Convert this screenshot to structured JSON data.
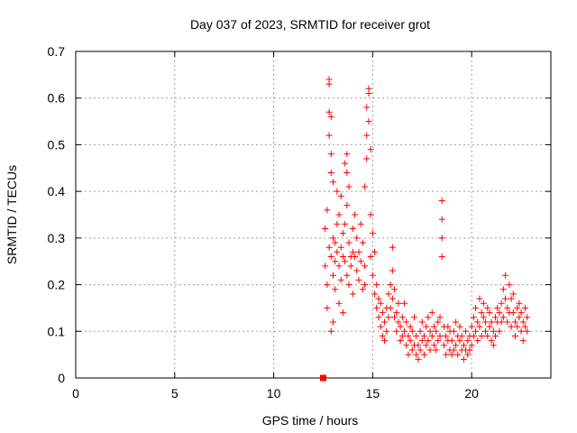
{
  "chart_data": {
    "type": "scatter",
    "title": "Day 037 of 2023, SRMTID for receiver grot",
    "xlabel": "GPS time / hours",
    "ylabel": "SRMTID / TECUs",
    "xlim": [
      0,
      24
    ],
    "ylim": [
      0,
      0.7
    ],
    "xticks": [
      0,
      5,
      10,
      15,
      20
    ],
    "yticks": [
      0,
      0.1,
      0.2,
      0.3,
      0.4,
      0.5,
      0.6,
      0.7
    ],
    "xtick_labels": [
      "0",
      "5",
      "10",
      "15",
      "20"
    ],
    "ytick_labels": [
      "0",
      "0.1",
      "0.2",
      "0.3",
      "0.4",
      "0.5",
      "0.6",
      "0.7"
    ],
    "grid": true,
    "marker": "plus",
    "color": "#ff0000",
    "special_point": {
      "x": 12.5,
      "y": 0.0,
      "marker": "square"
    },
    "series": [
      {
        "name": "SRMTID",
        "points": [
          [
            12.6,
            0.24
          ],
          [
            12.6,
            0.32
          ],
          [
            12.7,
            0.36
          ],
          [
            12.7,
            0.15
          ],
          [
            12.7,
            0.2
          ],
          [
            12.8,
            0.64
          ],
          [
            12.8,
            0.63
          ],
          [
            12.8,
            0.57
          ],
          [
            12.8,
            0.52
          ],
          [
            12.8,
            0.28
          ],
          [
            12.9,
            0.56
          ],
          [
            12.9,
            0.48
          ],
          [
            12.9,
            0.44
          ],
          [
            12.9,
            0.26
          ],
          [
            12.9,
            0.1
          ],
          [
            13.0,
            0.42
          ],
          [
            13.0,
            0.3
          ],
          [
            13.0,
            0.22
          ],
          [
            13.0,
            0.12
          ],
          [
            13.1,
            0.29
          ],
          [
            13.1,
            0.25
          ],
          [
            13.1,
            0.19
          ],
          [
            13.2,
            0.4
          ],
          [
            13.2,
            0.33
          ],
          [
            13.2,
            0.27
          ],
          [
            13.3,
            0.35
          ],
          [
            13.3,
            0.24
          ],
          [
            13.3,
            0.16
          ],
          [
            13.4,
            0.39
          ],
          [
            13.4,
            0.28
          ],
          [
            13.4,
            0.21
          ],
          [
            13.5,
            0.31
          ],
          [
            13.5,
            0.26
          ],
          [
            13.5,
            0.14
          ],
          [
            13.6,
            0.46
          ],
          [
            13.6,
            0.33
          ],
          [
            13.6,
            0.25
          ],
          [
            13.7,
            0.48
          ],
          [
            13.7,
            0.44
          ],
          [
            13.7,
            0.37
          ],
          [
            13.7,
            0.22
          ],
          [
            13.8,
            0.41
          ],
          [
            13.8,
            0.29
          ],
          [
            13.8,
            0.2
          ],
          [
            13.9,
            0.26
          ],
          [
            13.9,
            0.24
          ],
          [
            14.0,
            0.32
          ],
          [
            14.0,
            0.27
          ],
          [
            14.0,
            0.18
          ],
          [
            14.1,
            0.35
          ],
          [
            14.1,
            0.26
          ],
          [
            14.2,
            0.3
          ],
          [
            14.2,
            0.23
          ],
          [
            14.3,
            0.27
          ],
          [
            14.3,
            0.21
          ],
          [
            14.4,
            0.33
          ],
          [
            14.4,
            0.25
          ],
          [
            14.5,
            0.29
          ],
          [
            14.5,
            0.19
          ],
          [
            14.6,
            0.24
          ],
          [
            14.6,
            0.2
          ],
          [
            14.6,
            0.41
          ],
          [
            14.7,
            0.52
          ],
          [
            14.7,
            0.58
          ],
          [
            14.7,
            0.47
          ],
          [
            14.8,
            0.61
          ],
          [
            14.8,
            0.62
          ],
          [
            14.8,
            0.55
          ],
          [
            14.9,
            0.49
          ],
          [
            14.9,
            0.35
          ],
          [
            14.9,
            0.26
          ],
          [
            15.0,
            0.31
          ],
          [
            15.0,
            0.22
          ],
          [
            15.1,
            0.27
          ],
          [
            15.1,
            0.18
          ],
          [
            15.2,
            0.15
          ],
          [
            15.2,
            0.2
          ],
          [
            15.3,
            0.13
          ],
          [
            15.3,
            0.17
          ],
          [
            15.4,
            0.16
          ],
          [
            15.4,
            0.11
          ],
          [
            15.5,
            0.09
          ],
          [
            15.5,
            0.14
          ],
          [
            15.6,
            0.08
          ],
          [
            15.6,
            0.12
          ],
          [
            15.7,
            0.15
          ],
          [
            15.7,
            0.1
          ],
          [
            15.8,
            0.18
          ],
          [
            15.8,
            0.13
          ],
          [
            15.9,
            0.2
          ],
          [
            15.9,
            0.15
          ],
          [
            16.0,
            0.23
          ],
          [
            16.0,
            0.28
          ],
          [
            16.0,
            0.17
          ],
          [
            16.1,
            0.19
          ],
          [
            16.1,
            0.13
          ],
          [
            16.2,
            0.14
          ],
          [
            16.2,
            0.1
          ],
          [
            16.3,
            0.16
          ],
          [
            16.3,
            0.12
          ],
          [
            16.4,
            0.11
          ],
          [
            16.4,
            0.08
          ],
          [
            16.5,
            0.13
          ],
          [
            16.5,
            0.09
          ],
          [
            16.6,
            0.16
          ],
          [
            16.6,
            0.1
          ],
          [
            16.7,
            0.12
          ],
          [
            16.7,
            0.07
          ],
          [
            16.8,
            0.09
          ],
          [
            16.8,
            0.05
          ],
          [
            16.9,
            0.08
          ],
          [
            16.9,
            0.11
          ],
          [
            17.0,
            0.06
          ],
          [
            17.0,
            0.1
          ],
          [
            17.1,
            0.13
          ],
          [
            17.1,
            0.07
          ],
          [
            17.2,
            0.09
          ],
          [
            17.2,
            0.05
          ],
          [
            17.3,
            0.07
          ],
          [
            17.3,
            0.04
          ],
          [
            17.4,
            0.1
          ],
          [
            17.4,
            0.06
          ],
          [
            17.5,
            0.12
          ],
          [
            17.5,
            0.08
          ],
          [
            17.6,
            0.09
          ],
          [
            17.6,
            0.05
          ],
          [
            17.7,
            0.11
          ],
          [
            17.7,
            0.07
          ],
          [
            17.8,
            0.13
          ],
          [
            17.8,
            0.08
          ],
          [
            17.9,
            0.1
          ],
          [
            17.9,
            0.06
          ],
          [
            18.0,
            0.14
          ],
          [
            18.0,
            0.09
          ],
          [
            18.1,
            0.11
          ],
          [
            18.1,
            0.07
          ],
          [
            18.2,
            0.1
          ],
          [
            18.2,
            0.06
          ],
          [
            18.3,
            0.12
          ],
          [
            18.3,
            0.08
          ],
          [
            18.4,
            0.09
          ],
          [
            18.4,
            0.13
          ],
          [
            18.5,
            0.38
          ],
          [
            18.5,
            0.34
          ],
          [
            18.5,
            0.3
          ],
          [
            18.5,
            0.26
          ],
          [
            18.6,
            0.11
          ],
          [
            18.6,
            0.07
          ],
          [
            18.7,
            0.09
          ],
          [
            18.7,
            0.05
          ],
          [
            18.8,
            0.08
          ],
          [
            18.8,
            0.11
          ],
          [
            18.9,
            0.06
          ],
          [
            18.9,
            0.1
          ],
          [
            19.0,
            0.08
          ],
          [
            19.0,
            0.05
          ],
          [
            19.1,
            0.1
          ],
          [
            19.1,
            0.06
          ],
          [
            19.2,
            0.07
          ],
          [
            19.2,
            0.12
          ],
          [
            19.3,
            0.09
          ],
          [
            19.3,
            0.05
          ],
          [
            19.4,
            0.08
          ],
          [
            19.4,
            0.11
          ],
          [
            19.5,
            0.06
          ],
          [
            19.5,
            0.09
          ],
          [
            19.6,
            0.07
          ],
          [
            19.6,
            0.04
          ],
          [
            19.7,
            0.1
          ],
          [
            19.7,
            0.06
          ],
          [
            19.8,
            0.08
          ],
          [
            19.8,
            0.05
          ],
          [
            19.9,
            0.09
          ],
          [
            19.9,
            0.06
          ],
          [
            20.0,
            0.11
          ],
          [
            20.0,
            0.07
          ],
          [
            20.1,
            0.13
          ],
          [
            20.1,
            0.09
          ],
          [
            20.2,
            0.15
          ],
          [
            20.2,
            0.1
          ],
          [
            20.3,
            0.12
          ],
          [
            20.3,
            0.08
          ],
          [
            20.4,
            0.17
          ],
          [
            20.4,
            0.11
          ],
          [
            20.5,
            0.14
          ],
          [
            20.5,
            0.09
          ],
          [
            20.6,
            0.13
          ],
          [
            20.6,
            0.16
          ],
          [
            20.7,
            0.1
          ],
          [
            20.7,
            0.12
          ],
          [
            20.8,
            0.15
          ],
          [
            20.8,
            0.09
          ],
          [
            20.9,
            0.11
          ],
          [
            20.9,
            0.14
          ],
          [
            21.0,
            0.08
          ],
          [
            21.0,
            0.12
          ],
          [
            21.1,
            0.1
          ],
          [
            21.1,
            0.07
          ],
          [
            21.2,
            0.13
          ],
          [
            21.2,
            0.09
          ],
          [
            21.3,
            0.12
          ],
          [
            21.3,
            0.15
          ],
          [
            21.4,
            0.1
          ],
          [
            21.4,
            0.14
          ],
          [
            21.5,
            0.12
          ],
          [
            21.5,
            0.16
          ],
          [
            21.6,
            0.19
          ],
          [
            21.6,
            0.13
          ],
          [
            21.7,
            0.22
          ],
          [
            21.7,
            0.17
          ],
          [
            21.8,
            0.12
          ],
          [
            21.8,
            0.15
          ],
          [
            21.9,
            0.2
          ],
          [
            21.9,
            0.14
          ],
          [
            22.0,
            0.17
          ],
          [
            22.0,
            0.11
          ],
          [
            22.1,
            0.14
          ],
          [
            22.1,
            0.18
          ],
          [
            22.2,
            0.12
          ],
          [
            22.2,
            0.09
          ],
          [
            22.3,
            0.15
          ],
          [
            22.3,
            0.11
          ],
          [
            22.4,
            0.13
          ],
          [
            22.4,
            0.16
          ],
          [
            22.5,
            0.1
          ],
          [
            22.5,
            0.14
          ],
          [
            22.6,
            0.12
          ],
          [
            22.6,
            0.08
          ],
          [
            22.7,
            0.15
          ],
          [
            22.7,
            0.11
          ],
          [
            22.8,
            0.13
          ],
          [
            22.8,
            0.1
          ]
        ]
      }
    ]
  }
}
